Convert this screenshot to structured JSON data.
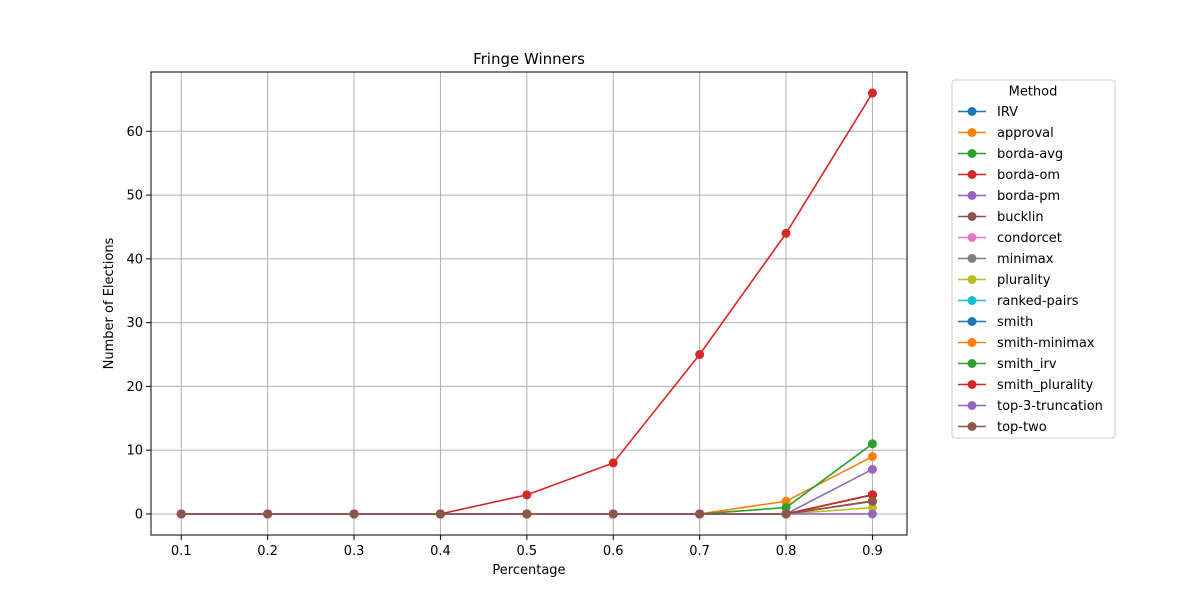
{
  "chart_data": {
    "type": "line",
    "title": "Fringe Winners",
    "xlabel": "Percentage",
    "ylabel": "Number of Elections",
    "x": [
      0.1,
      0.2,
      0.3,
      0.4,
      0.5,
      0.6,
      0.7,
      0.8,
      0.9
    ],
    "x_ticks": [
      "0.1",
      "0.2",
      "0.3",
      "0.4",
      "0.5",
      "0.6",
      "0.7",
      "0.8",
      "0.9"
    ],
    "y_ticks": [
      "0",
      "10",
      "20",
      "30",
      "40",
      "50",
      "60"
    ],
    "xlim": [
      0.065,
      0.94
    ],
    "ylim": [
      -3.3,
      69.3
    ],
    "grid": true,
    "legend": {
      "title": "Method",
      "placement": "outside-right"
    },
    "series": [
      {
        "name": "IRV",
        "color": "#1f77b4",
        "values": [
          0,
          0,
          0,
          0,
          0,
          0,
          0,
          0,
          3
        ]
      },
      {
        "name": "approval",
        "color": "#ff7f0e",
        "values": [
          0,
          0,
          0,
          0,
          0,
          0,
          0,
          2,
          9
        ]
      },
      {
        "name": "borda-avg",
        "color": "#2ca02c",
        "values": [
          0,
          0,
          0,
          0,
          0,
          0,
          0,
          1,
          11
        ]
      },
      {
        "name": "borda-om",
        "color": "#d62728",
        "values": [
          0,
          0,
          0,
          0,
          3,
          8,
          25,
          44,
          66
        ]
      },
      {
        "name": "borda-pm",
        "color": "#9467bd",
        "values": [
          0,
          0,
          0,
          0,
          0,
          0,
          0,
          0,
          7
        ]
      },
      {
        "name": "bucklin",
        "color": "#8c564b",
        "values": [
          0,
          0,
          0,
          0,
          0,
          0,
          0,
          0,
          3
        ]
      },
      {
        "name": "condorcet",
        "color": "#e377c2",
        "values": [
          0,
          0,
          0,
          0,
          0,
          0,
          0,
          0,
          2
        ]
      },
      {
        "name": "minimax",
        "color": "#7f7f7f",
        "values": [
          0,
          0,
          0,
          0,
          0,
          0,
          0,
          0,
          2
        ]
      },
      {
        "name": "plurality",
        "color": "#bcbd22",
        "values": [
          0,
          0,
          0,
          0,
          0,
          0,
          0,
          0,
          1
        ]
      },
      {
        "name": "ranked-pairs",
        "color": "#17becf",
        "values": [
          0,
          0,
          0,
          0,
          0,
          0,
          0,
          0,
          2
        ]
      },
      {
        "name": "smith",
        "color": "#1f77b4",
        "values": [
          0,
          0,
          0,
          0,
          0,
          0,
          0,
          0,
          2
        ]
      },
      {
        "name": "smith-minimax",
        "color": "#ff7f0e",
        "values": [
          0,
          0,
          0,
          0,
          0,
          0,
          0,
          0,
          2
        ]
      },
      {
        "name": "smith_irv",
        "color": "#2ca02c",
        "values": [
          0,
          0,
          0,
          0,
          0,
          0,
          0,
          0,
          3
        ]
      },
      {
        "name": "smith_plurality",
        "color": "#d62728",
        "values": [
          0,
          0,
          0,
          0,
          0,
          0,
          0,
          0,
          3
        ]
      },
      {
        "name": "top-3-truncation",
        "color": "#9467bd",
        "values": [
          0,
          0,
          0,
          0,
          0,
          0,
          0,
          0,
          0
        ]
      },
      {
        "name": "top-two",
        "color": "#8c564b",
        "values": [
          0,
          0,
          0,
          0,
          0,
          0,
          0,
          0,
          2
        ]
      }
    ]
  }
}
